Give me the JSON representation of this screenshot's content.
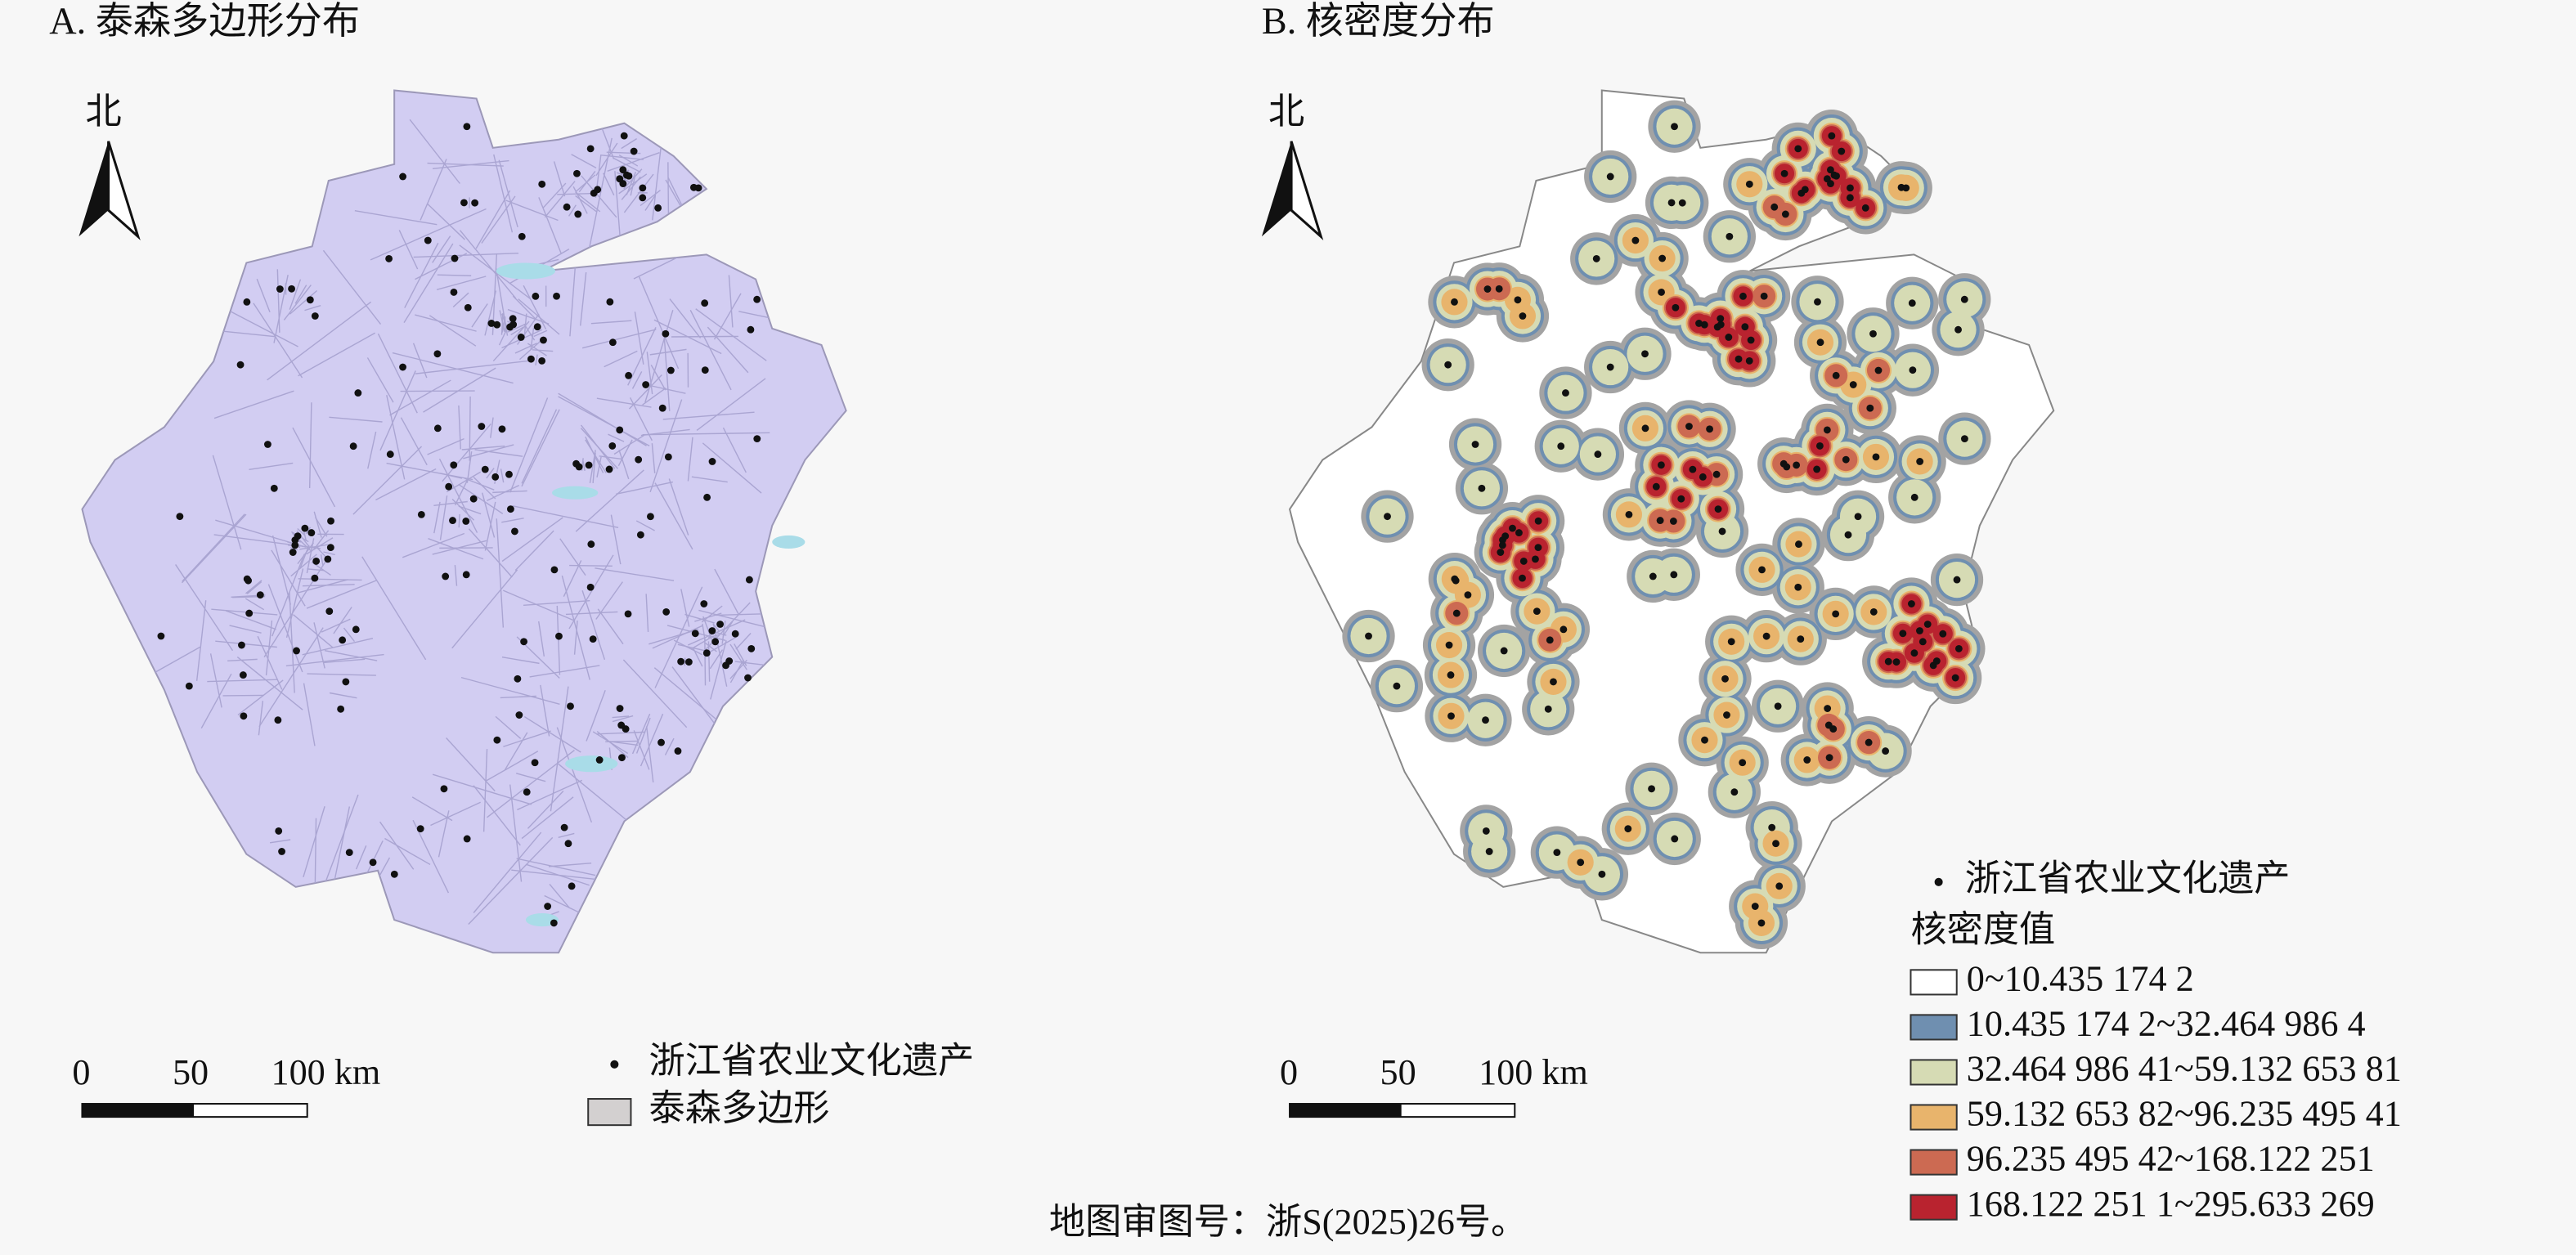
{
  "panels": [
    {
      "title": "A. 泰森多边形分布",
      "north": "北",
      "scale_labels": [
        "0",
        "50",
        "100 km"
      ],
      "legend": [
        {
          "label": "浙江省农业文化遗产"
        },
        {
          "label": "泰森多边形",
          "color": "#d3d0d0"
        }
      ]
    },
    {
      "title": "B. 核密度分布",
      "north": "北",
      "scale_labels": [
        "0",
        "50",
        "100 km"
      ],
      "legend_point": "浙江省农业文化遗产",
      "legend_title": "核密度值",
      "classes": [
        {
          "label": "0~10.435 174 2",
          "color": "#ffffff"
        },
        {
          "label": "10.435 174 2~32.464 986 4",
          "color": "#6f8fb0"
        },
        {
          "label": "32.464 986 41~59.132 653 81",
          "color": "#d6dbb4"
        },
        {
          "label": "59.132 653 82~96.235 495 41",
          "color": "#e8b46c"
        },
        {
          "label": "96.235 495 42~168.122 251",
          "color": "#cc6a52"
        },
        {
          "label": "168.122 251 1~295.633 269",
          "color": "#b9232f"
        }
      ]
    }
  ],
  "footer": "地图审图号：浙S(2025)26号。"
}
